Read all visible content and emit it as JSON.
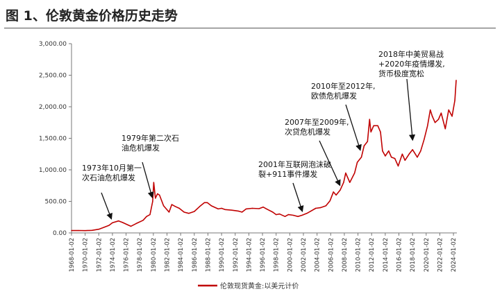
{
  "figure": {
    "title": "图 1、伦敦黄金价格历史走势"
  },
  "chart_data": {
    "type": "line",
    "title": "",
    "xlabel": "",
    "ylabel": "",
    "ylim": [
      0,
      3000
    ],
    "yticks": [
      "3,000.00",
      "2,500.00",
      "2,000.00",
      "1,500.00",
      "1,000.00",
      "500.00",
      "0.00"
    ],
    "xticks": [
      "1968-01-02",
      "1970-01-02",
      "1972-01-02",
      "1974-01-02",
      "1976-01-02",
      "1978-01-02",
      "1980-01-02",
      "1982-01-02",
      "1984-01-02",
      "1986-01-02",
      "1988-01-02",
      "1990-01-02",
      "1992-01-02",
      "1994-01-02",
      "1996-01-02",
      "1998-01-02",
      "2000-01-02",
      "2002-01-02",
      "2004-01-02",
      "2006-01-02",
      "2008-01-02",
      "2010-01-02",
      "2012-01-02",
      "2014-01-02",
      "2016-01-02",
      "2018-01-02",
      "2020-01-02",
      "2022-01-02",
      "2024-01-02"
    ],
    "grid": false,
    "legend_position": "bottom",
    "series": [
      {
        "name": "伦敦现货黄金:以美元计价",
        "color": "#c00000",
        "x": [
          1968.0,
          1969.0,
          1970.0,
          1971.0,
          1972.0,
          1972.8,
          1973.5,
          1974.0,
          1974.9,
          1975.5,
          1976.3,
          1976.7,
          1977.5,
          1978.5,
          1979.0,
          1979.5,
          1979.9,
          1980.05,
          1980.3,
          1980.6,
          1980.9,
          1981.5,
          1982.3,
          1982.7,
          1983.2,
          1983.8,
          1984.5,
          1985.2,
          1986.0,
          1986.8,
          1987.5,
          1987.9,
          1988.5,
          1989.5,
          1990.0,
          1990.5,
          1991.5,
          1992.5,
          1993.0,
          1993.6,
          1994.5,
          1995.5,
          1996.1,
          1996.6,
          1997.5,
          1998.0,
          1998.5,
          1999.3,
          1999.8,
          2000.5,
          2001.2,
          2001.8,
          2002.5,
          2003.0,
          2003.8,
          2004.5,
          2005.3,
          2005.9,
          2006.4,
          2006.8,
          2007.4,
          2007.9,
          2008.2,
          2008.8,
          2009.5,
          2009.9,
          2010.5,
          2010.9,
          2011.4,
          2011.7,
          2011.9,
          2012.3,
          2012.9,
          2013.3,
          2013.6,
          2014.0,
          2014.5,
          2014.9,
          2015.4,
          2015.9,
          2016.5,
          2016.9,
          2017.5,
          2018.0,
          2018.7,
          2019.2,
          2019.7,
          2020.2,
          2020.6,
          2020.9,
          2021.3,
          2021.8,
          2022.2,
          2022.8,
          2023.3,
          2023.8,
          2024.2,
          2024.4
        ],
        "values": [
          37,
          38,
          36,
          41,
          58,
          90,
          120,
          160,
          190,
          165,
          125,
          105,
          150,
          200,
          260,
          290,
          500,
          800,
          550,
          620,
          600,
          430,
          330,
          450,
          420,
          390,
          330,
          310,
          340,
          420,
          480,
          480,
          430,
          380,
          390,
          370,
          360,
          345,
          330,
          380,
          390,
          385,
          410,
          380,
          330,
          290,
          300,
          260,
          290,
          280,
          260,
          280,
          310,
          340,
          390,
          400,
          430,
          510,
          650,
          600,
          680,
          800,
          950,
          800,
          950,
          1120,
          1200,
          1380,
          1450,
          1800,
          1600,
          1700,
          1700,
          1600,
          1300,
          1220,
          1300,
          1200,
          1180,
          1060,
          1250,
          1150,
          1250,
          1320,
          1200,
          1300,
          1480,
          1700,
          1950,
          1850,
          1750,
          1800,
          1900,
          1650,
          1950,
          1850,
          2100,
          2420
        ]
      }
    ],
    "annotations": [
      {
        "lines": [
          "1973年10月第一",
          "次石油危机爆发"
        ],
        "x": 1973.8,
        "y": 170
      },
      {
        "lines": [
          "1979年第二次石",
          "油危机爆发"
        ],
        "x": 1979.8,
        "y": 510
      },
      {
        "lines": [
          "2001年互联网泡沫破",
          "裂+911事件爆发"
        ],
        "x": 2001.8,
        "y": 290
      },
      {
        "lines": [
          "2007年至2009年,",
          "次贷危机爆发"
        ],
        "x": 2007.3,
        "y": 700
      },
      {
        "lines": [
          "2010年至2012年,",
          "欧债危机爆发"
        ],
        "x": 2010.3,
        "y": 1260
      },
      {
        "lines": [
          "2018年中美贸易战",
          "+2020年疫情爆发,",
          "货币极度宽松"
        ],
        "x": 2018.0,
        "y": 1420
      }
    ]
  }
}
